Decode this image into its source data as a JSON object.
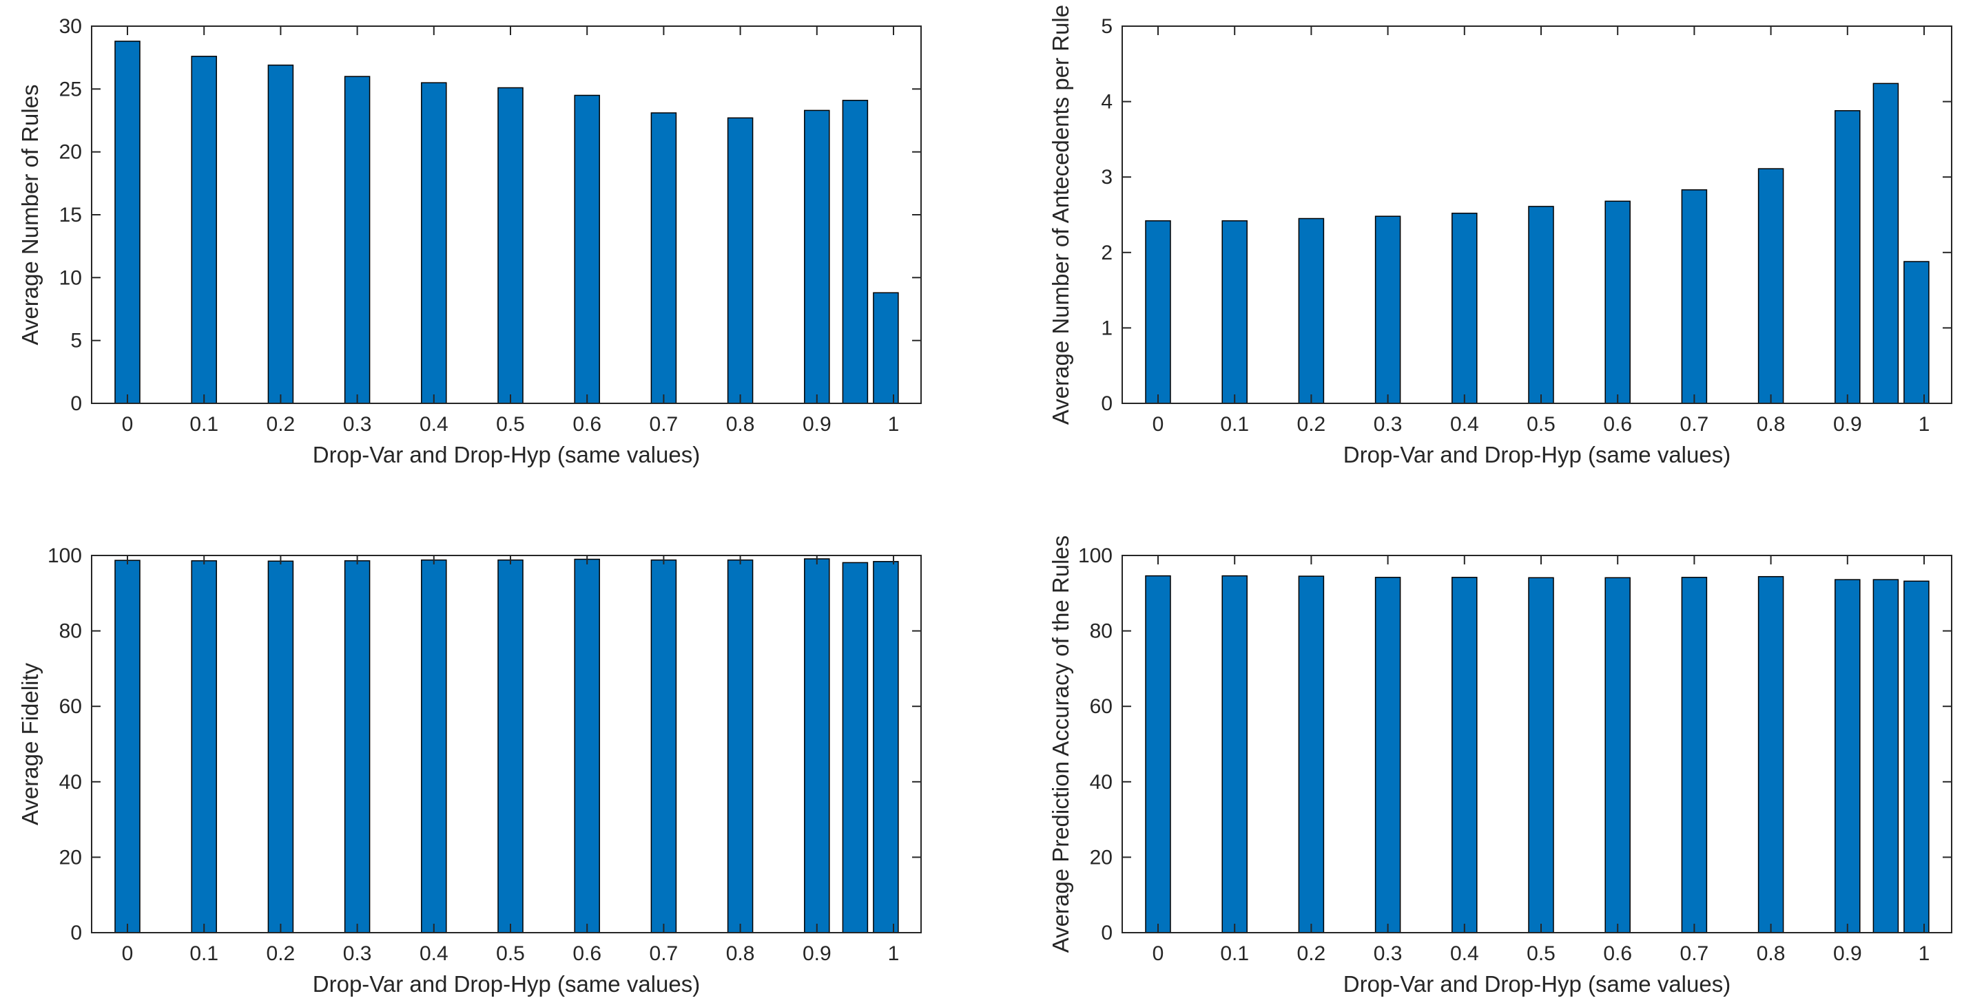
{
  "figure": {
    "background": "#ffffff",
    "bar_fill_color": "#0072bd",
    "bar_edge_color": "#000000",
    "axis_color": "#262626"
  },
  "chart_data": [
    {
      "id": "avg-number-of-rules",
      "type": "bar",
      "title": "",
      "xlabel": "Drop-Var and Drop-Hyp (same values)",
      "ylabel": "Average Number of Rules",
      "x": [
        0,
        0.1,
        0.2,
        0.3,
        0.4,
        0.5,
        0.6,
        0.7,
        0.8,
        0.9,
        0.95,
        0.99
      ],
      "values": [
        28.8,
        27.6,
        26.9,
        26.0,
        25.5,
        25.1,
        24.5,
        23.1,
        22.7,
        23.3,
        24.1,
        8.8
      ],
      "ylim": [
        0,
        30
      ],
      "yticks": [
        0,
        5,
        10,
        15,
        20,
        25,
        30
      ],
      "ytick_labels": [
        "0",
        "5",
        "10",
        "15",
        "20",
        "25",
        "30"
      ],
      "xticks": [
        0,
        0.1,
        0.2,
        0.3,
        0.4,
        0.5,
        0.6,
        0.7,
        0.8,
        0.9,
        1
      ],
      "xtick_labels": [
        "0",
        "0.1",
        "0.2",
        "0.3",
        "0.4",
        "0.5",
        "0.6",
        "0.7",
        "0.8",
        "0.9",
        "1"
      ],
      "grid": false,
      "legend": null
    },
    {
      "id": "avg-number-of-antecedents-per-rule",
      "type": "bar",
      "title": "",
      "xlabel": "Drop-Var and Drop-Hyp (same values)",
      "ylabel": "Average Number of Antecedents per Rule",
      "x": [
        0,
        0.1,
        0.2,
        0.3,
        0.4,
        0.5,
        0.6,
        0.7,
        0.8,
        0.9,
        0.95,
        0.99
      ],
      "values": [
        2.42,
        2.42,
        2.45,
        2.48,
        2.52,
        2.61,
        2.68,
        2.83,
        3.11,
        3.88,
        4.24,
        1.88
      ],
      "ylim": [
        0,
        5
      ],
      "yticks": [
        0,
        1,
        2,
        3,
        4,
        5
      ],
      "ytick_labels": [
        "0",
        "1",
        "2",
        "3",
        "4",
        "5"
      ],
      "xticks": [
        0,
        0.1,
        0.2,
        0.3,
        0.4,
        0.5,
        0.6,
        0.7,
        0.8,
        0.9,
        1
      ],
      "xtick_labels": [
        "0",
        "0.1",
        "0.2",
        "0.3",
        "0.4",
        "0.5",
        "0.6",
        "0.7",
        "0.8",
        "0.9",
        "1"
      ],
      "grid": false,
      "legend": null
    },
    {
      "id": "avg-fidelity",
      "type": "bar",
      "title": "",
      "xlabel": "Drop-Var and Drop-Hyp (same values)",
      "ylabel": "Average Fidelity",
      "x": [
        0,
        0.1,
        0.2,
        0.3,
        0.4,
        0.5,
        0.6,
        0.7,
        0.8,
        0.9,
        0.95,
        0.99
      ],
      "values": [
        98.7,
        98.6,
        98.5,
        98.6,
        98.8,
        98.8,
        99.0,
        98.8,
        98.8,
        99.1,
        98.1,
        98.4
      ],
      "ylim": [
        0,
        100
      ],
      "yticks": [
        0,
        20,
        40,
        60,
        80,
        100
      ],
      "ytick_labels": [
        "0",
        "20",
        "40",
        "60",
        "80",
        "100"
      ],
      "xticks": [
        0,
        0.1,
        0.2,
        0.3,
        0.4,
        0.5,
        0.6,
        0.7,
        0.8,
        0.9,
        1
      ],
      "xtick_labels": [
        "0",
        "0.1",
        "0.2",
        "0.3",
        "0.4",
        "0.5",
        "0.6",
        "0.7",
        "0.8",
        "0.9",
        "1"
      ],
      "grid": false,
      "legend": null
    },
    {
      "id": "avg-prediction-accuracy-of-the-rules",
      "type": "bar",
      "title": "",
      "xlabel": "Drop-Var and Drop-Hyp (same values)",
      "ylabel": "Average Prediction Accuracy of the Rules",
      "x": [
        0,
        0.1,
        0.2,
        0.3,
        0.4,
        0.5,
        0.6,
        0.7,
        0.8,
        0.9,
        0.95,
        0.99
      ],
      "values": [
        94.6,
        94.6,
        94.5,
        94.2,
        94.2,
        94.1,
        94.1,
        94.2,
        94.4,
        93.6,
        93.6,
        93.2
      ],
      "ylim": [
        0,
        100
      ],
      "yticks": [
        0,
        20,
        40,
        60,
        80,
        100
      ],
      "ytick_labels": [
        "0",
        "20",
        "40",
        "60",
        "80",
        "100"
      ],
      "xticks": [
        0,
        0.1,
        0.2,
        0.3,
        0.4,
        0.5,
        0.6,
        0.7,
        0.8,
        0.9,
        1
      ],
      "xtick_labels": [
        "0",
        "0.1",
        "0.2",
        "0.3",
        "0.4",
        "0.5",
        "0.6",
        "0.7",
        "0.8",
        "0.9",
        "1"
      ],
      "grid": false,
      "legend": null
    }
  ]
}
